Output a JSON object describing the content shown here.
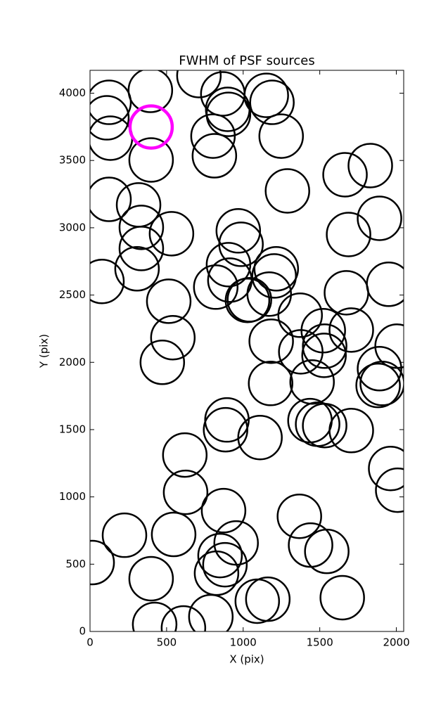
{
  "chart_data": {
    "type": "scatter",
    "title": "FWHM of PSF sources",
    "x_label": "X (pix)",
    "y_label": "Y (pix)",
    "xlim": [
      0,
      2048
    ],
    "ylim": [
      0,
      4170
    ],
    "xticks": [
      0,
      500,
      1000,
      1500,
      2000
    ],
    "yticks": [
      0,
      500,
      1000,
      1500,
      2000,
      2500,
      3000,
      3500,
      4000
    ],
    "color": "#000000",
    "x": [
      14,
      225,
      399,
      422,
      610,
      789,
      826,
      849,
      881,
      954,
      1092,
      1161,
      546,
      624,
      619,
      872,
      1367,
      1440,
      1546,
      1647,
      894,
      885,
      1110,
      1436,
      1486,
      1532,
      1706,
      1963,
      2009,
      472,
      541,
      514,
      78,
      307,
      335,
      335,
      317,
      124,
      532,
      821,
      904,
      913,
      986,
      968,
      1028,
      1041,
      1170,
      1202,
      1216,
      1183,
      1179,
      1372,
      1376,
      1450,
      1523,
      1528,
      1532,
      1706,
      1674,
      1688,
      1890,
      1950,
      2005,
      1890,
      1881,
      1908,
      1665,
      1830,
      1289,
      1248,
      1188,
      1151,
      899,
      904,
      867,
      803,
      812,
      711,
      399,
      394,
      124,
      110,
      133
    ],
    "values": [
      512,
      715,
      392,
      52,
      26,
      110,
      433,
      564,
      496,
      658,
      225,
      240,
      721,
      1034,
      1311,
      898,
      856,
      642,
      595,
      251,
      1572,
      1499,
      1441,
      1567,
      1540,
      1530,
      1493,
      1211,
      1050,
      2000,
      2183,
      2454,
      2601,
      2695,
      2846,
      3003,
      3170,
      3211,
      2956,
      2559,
      2726,
      2611,
      2877,
      2977,
      2460,
      2465,
      2507,
      2642,
      2695,
      2157,
      1843,
      2350,
      2078,
      1854,
      2235,
      2052,
      2120,
      2240,
      2517,
      2950,
      3070,
      2580,
      2120,
      1953,
      1828,
      1843,
      3394,
      3462,
      3274,
      3681,
      3932,
      3984,
      3880,
      3843,
      3995,
      3681,
      3535,
      4131,
      3504,
      4021,
      3932,
      3817,
      3666
    ],
    "highlight": {
      "x": [
        399
      ],
      "values": [
        3749
      ],
      "color": "#ff00ff"
    }
  }
}
